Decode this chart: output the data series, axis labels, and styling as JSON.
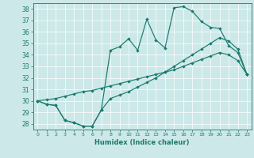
{
  "xlabel": "Humidex (Indice chaleur)",
  "bg_color": "#cce8e8",
  "line_color": "#1a7a6e",
  "xlim": [
    -0.5,
    23.5
  ],
  "ylim": [
    27.5,
    38.5
  ],
  "yticks": [
    28,
    29,
    30,
    31,
    32,
    33,
    34,
    35,
    36,
    37,
    38
  ],
  "xticks": [
    0,
    1,
    2,
    3,
    4,
    5,
    6,
    7,
    8,
    9,
    10,
    11,
    12,
    13,
    14,
    15,
    16,
    17,
    18,
    19,
    20,
    21,
    22,
    23
  ],
  "line1": [
    30.0,
    29.7,
    29.6,
    28.3,
    28.1,
    27.8,
    27.8,
    29.2,
    34.4,
    34.7,
    35.4,
    34.4,
    37.1,
    35.3,
    34.6,
    38.1,
    38.2,
    37.8,
    36.9,
    36.4,
    36.3,
    34.8,
    34.2,
    32.3
  ],
  "line2": [
    30.0,
    29.7,
    29.6,
    28.3,
    28.1,
    27.8,
    27.8,
    29.2,
    30.2,
    30.5,
    30.8,
    31.2,
    31.6,
    32.0,
    32.5,
    33.0,
    33.5,
    34.0,
    34.5,
    35.0,
    35.5,
    35.2,
    34.5,
    32.3
  ],
  "line3": [
    30.0,
    30.1,
    30.2,
    30.4,
    30.6,
    30.8,
    30.9,
    31.1,
    31.3,
    31.5,
    31.7,
    31.9,
    32.1,
    32.3,
    32.5,
    32.7,
    33.0,
    33.3,
    33.6,
    33.9,
    34.2,
    34.0,
    33.5,
    32.3
  ]
}
